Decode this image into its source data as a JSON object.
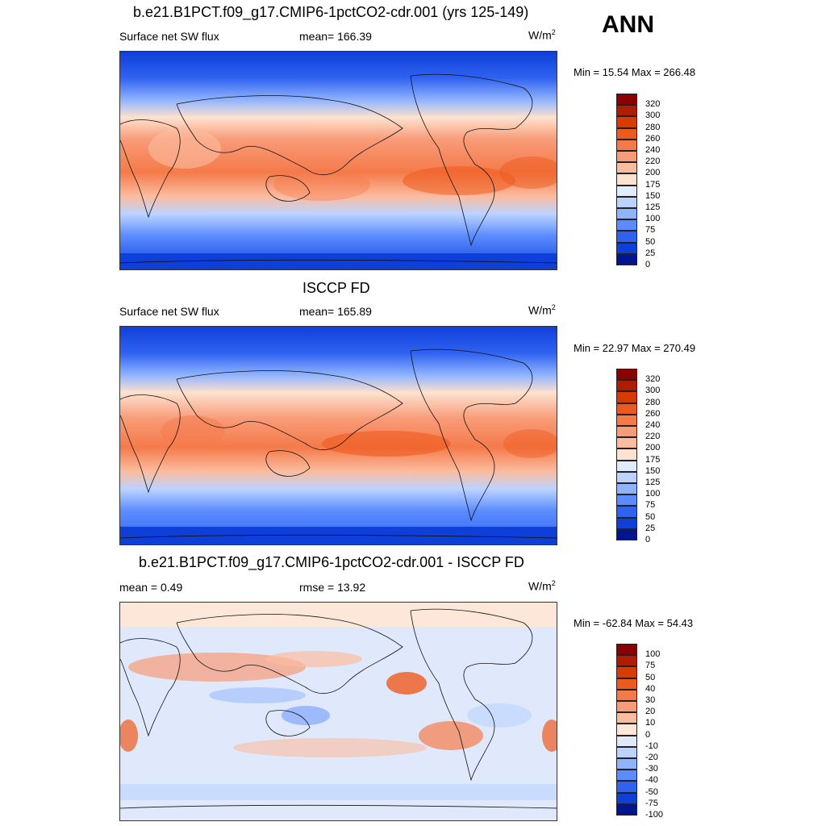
{
  "annotation": "ANN",
  "panels": [
    {
      "title": "b.e21.B1PCT.f09_g17.CMIP6-1pctCO2-cdr.001 (yrs 125-149)",
      "left_label": "Surface net SW flux",
      "center_label": "mean= 166.39",
      "units_base": "W/m",
      "units_exp": "2",
      "minmax": "Min =  15.54 Max = 266.48",
      "colorbar_ticks": [
        "320",
        "300",
        "280",
        "260",
        "240",
        "220",
        "200",
        "175",
        "150",
        "125",
        "100",
        "75",
        "50",
        "25",
        "0"
      ],
      "colorbar_colors": [
        "#8b0000",
        "#b01c00",
        "#d93a00",
        "#ee5a1e",
        "#f57a4a",
        "#f89b78",
        "#fbbc9f",
        "#fde2cf",
        "#e1ecff",
        "#bcd3ff",
        "#8fb3ff",
        "#5b8cff",
        "#2f62f0",
        "#0f3fd9",
        "#00158f"
      ]
    },
    {
      "title": "ISCCP FD",
      "left_label": "Surface net SW flux",
      "center_label": "mean= 165.89",
      "units_base": "W/m",
      "units_exp": "2",
      "minmax": "Min =  22.97 Max = 270.49",
      "colorbar_ticks": [
        "320",
        "300",
        "280",
        "260",
        "240",
        "220",
        "200",
        "175",
        "150",
        "125",
        "100",
        "75",
        "50",
        "25",
        "0"
      ],
      "colorbar_colors": [
        "#8b0000",
        "#b01c00",
        "#d93a00",
        "#ee5a1e",
        "#f57a4a",
        "#f89b78",
        "#fbbc9f",
        "#fde2cf",
        "#e1ecff",
        "#bcd3ff",
        "#8fb3ff",
        "#5b8cff",
        "#2f62f0",
        "#0f3fd9",
        "#00158f"
      ]
    },
    {
      "title": "b.e21.B1PCT.f09_g17.CMIP6-1pctCO2-cdr.001 - ISCCP FD",
      "left_label": "mean =   0.49",
      "center_label": "rmse =  13.92",
      "units_base": "W/m",
      "units_exp": "2",
      "minmax": "Min = -62.84 Max =  54.43",
      "colorbar_ticks": [
        "100",
        "75",
        "50",
        "40",
        "30",
        "20",
        "10",
        "0",
        "-10",
        "-20",
        "-30",
        "-40",
        "-50",
        "-75",
        "-100"
      ],
      "colorbar_colors": [
        "#8b0000",
        "#b01c00",
        "#d93a00",
        "#ee5a1e",
        "#f57a4a",
        "#f89b78",
        "#fbbc9f",
        "#fde7d8",
        "#dfe9fb",
        "#bcd3ff",
        "#8fb3ff",
        "#5b8cff",
        "#2f62f0",
        "#0f3fd9",
        "#00158f"
      ]
    }
  ]
}
